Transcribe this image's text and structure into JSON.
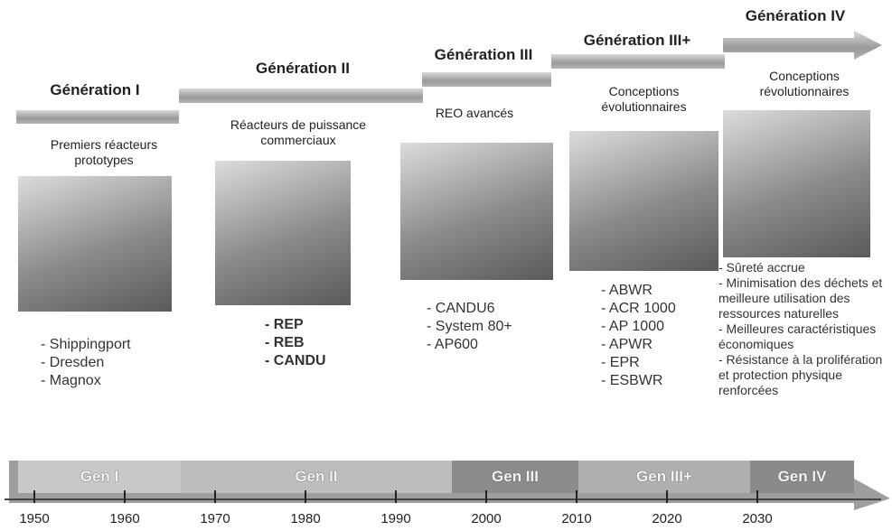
{
  "generations": [
    {
      "title": "Génération I",
      "description": "Premiers réacteurs prototypes",
      "items": [
        "- Shippingport",
        "- Dresden",
        "- Magnox"
      ]
    },
    {
      "title": "Génération II",
      "description": "Réacteurs de puissance commerciaux",
      "items": [
        "- REP",
        "- REB",
        "- CANDU"
      ]
    },
    {
      "title": "Génération III",
      "description": "REO avancés",
      "items": [
        "- CANDU6",
        "- System 80+",
        "- AP600"
      ]
    },
    {
      "title": "Génération III+",
      "description": "Conceptions évolutionnaires",
      "items": [
        "- ABWR",
        "- ACR 1000",
        "- AP 1000",
        "- APWR",
        "- EPR",
        "- ESBWR"
      ]
    },
    {
      "title": "Génération IV",
      "description": "Conceptions révolutionnaires",
      "items": [
        "- Sûreté accrue",
        "- Minimisation des déchets et meilleure utilisation des ressources naturelles",
        "- Meilleures caractéristiques économiques",
        "- Résistance à la prolifération et protection physique renforcées"
      ]
    }
  ],
  "timeline": {
    "bands": [
      "Gen I",
      "Gen II",
      "Gen III",
      "Gen III+",
      "Gen IV"
    ],
    "years": [
      "1950",
      "1960",
      "1970",
      "1980",
      "1990",
      "2000",
      "2010",
      "2020",
      "2030"
    ]
  }
}
